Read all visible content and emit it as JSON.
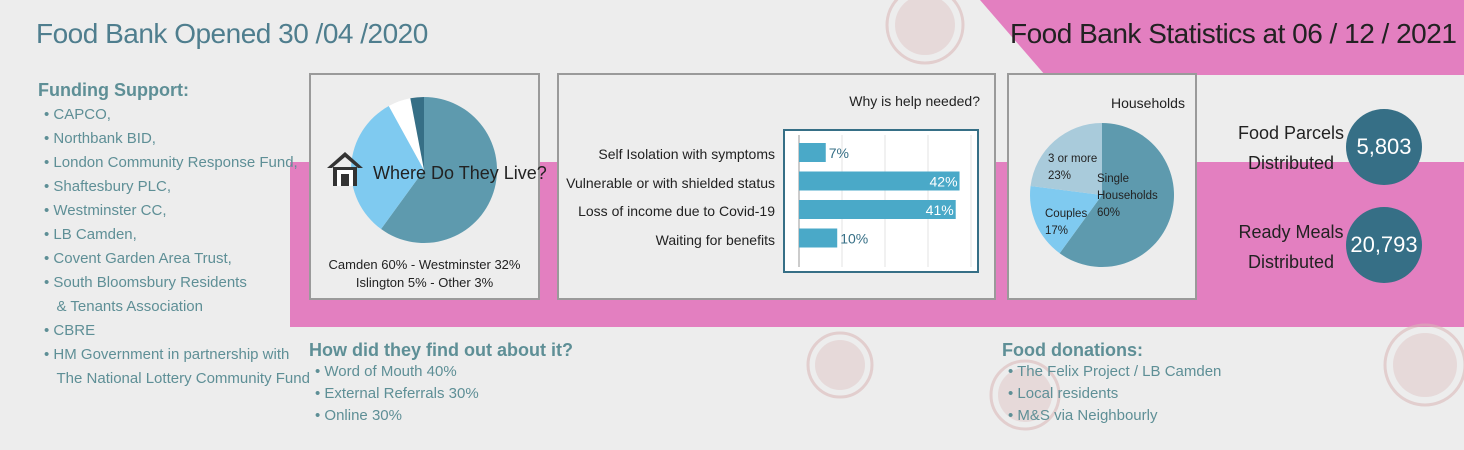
{
  "header": {
    "left_title": "Food Bank Opened 30 /04 /2020",
    "right_title": "Food Bank Statistics at 06 / 12 / 2021"
  },
  "funding": {
    "heading": "Funding Support:",
    "items": [
      "• CAPCO,",
      "• Northbank BID,",
      "• London Community Response Fund,",
      "• Shaftesbury PLC,",
      "• Westminster CC,",
      "• LB Camden,",
      "• Covent Garden Area Trust,",
      "• South Bloomsbury Residents",
      "  & Tenants Association",
      "• CBRE",
      "• HM Government in partnership with",
      "  The National Lottery Community Fund"
    ]
  },
  "find_out": {
    "heading": "How did they find out about it?",
    "items": [
      "• Word of Mouth 40%",
      "• External Referrals 30%",
      "• Online 30%"
    ]
  },
  "donations": {
    "heading": "Food donations:",
    "items": [
      "• The Felix Project / LB Camden",
      "• Local residents",
      "• M&S via Neighbourly"
    ]
  },
  "stats": {
    "food_parcels_line1": "Food Parcels",
    "food_parcels_line2": "Distributed",
    "food_parcels_value": "5,803",
    "ready_meals_line1": "Ready Meals",
    "ready_meals_line2": "Distributed",
    "ready_meals_value": "20,793"
  },
  "colors": {
    "pink": "#e37fc0",
    "teal_dark": "#366f86",
    "teal_mid": "#5e9aae",
    "blue_light": "#7fcaf0",
    "bar": "#4aa9c8",
    "heading_text": "#5e8f96"
  },
  "chart_data": [
    {
      "type": "pie",
      "title": "Where Do They Live?",
      "caption_line1": "Camden 60% - Westminster 32%",
      "caption_line2": "Islington 5% - Other 3%",
      "labels": [
        "Camden",
        "Westminster",
        "Islington",
        "Other"
      ],
      "values": [
        60,
        32,
        5,
        3
      ],
      "colors": [
        "#5e9aae",
        "#7fcaf0",
        "#ffffff",
        "#366f86"
      ]
    },
    {
      "type": "bar",
      "orientation": "horizontal",
      "title": "Why is help needed?",
      "categories": [
        "Self Isolation with symptoms",
        "Vulnerable or with shielded status",
        "Loss of income due to Covid-19",
        "Waiting for benefits"
      ],
      "values": [
        7,
        42,
        41,
        10
      ],
      "value_labels": [
        "7%",
        "42%",
        "41%",
        "10%"
      ],
      "xlim": [
        0,
        45
      ]
    },
    {
      "type": "pie",
      "title": "Households",
      "labels": [
        "Single Households",
        "Couples",
        "3 or more"
      ],
      "label_text": [
        [
          "Single",
          "Households",
          "60%"
        ],
        [
          "Couples",
          "17%"
        ],
        [
          "3 or more",
          "23%"
        ]
      ],
      "values": [
        60,
        17,
        23
      ],
      "colors": [
        "#5e9aae",
        "#7fcaf0",
        "#a9cbdb"
      ]
    }
  ]
}
